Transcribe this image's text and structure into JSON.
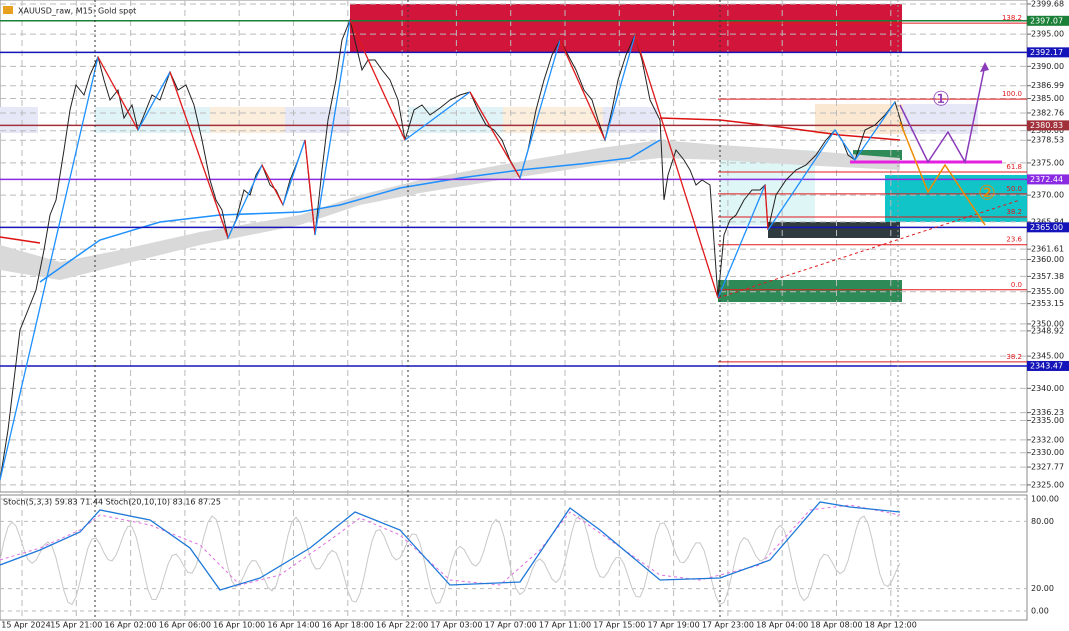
{
  "chart_data": {
    "type": "candlestick",
    "title": "XAUUSD_raw, M15: Gold spot",
    "categories": [
      "15 Apr 2024",
      "15 Apr 21:00",
      "16 Apr 02:00",
      "16 Apr 06:00",
      "16 Apr 10:00",
      "16 Apr 14:00",
      "16 Apr 18:00",
      "16 Apr 22:00",
      "17 Apr 03:00",
      "17 Apr 07:00",
      "17 Apr 11:00",
      "17 Apr 15:00",
      "17 Apr 19:00",
      "17 Apr 23:00",
      "18 Apr 04:00",
      "18 Apr 08:00",
      "18 Apr 12:00"
    ],
    "ylim": [
      2323.9,
      2400.3
    ],
    "yticks": [
      {
        "value": 2399.68,
        "label": "2399.68"
      },
      {
        "value": 2395,
        "label": "2395.00"
      },
      {
        "value": 2390,
        "label": "2390.00"
      },
      {
        "value": 2386.99,
        "label": "2386.99"
      },
      {
        "value": 2385,
        "label": "2385.00"
      },
      {
        "value": 2382.76,
        "label": "2382.76"
      },
      {
        "value": 2380,
        "label": "2380.00"
      },
      {
        "value": 2378.53,
        "label": "2378.53"
      },
      {
        "value": 2375,
        "label": "2375.00"
      },
      {
        "value": 2370,
        "label": "2370.00"
      },
      {
        "value": 2365.84,
        "label": "2365.84"
      },
      {
        "value": 2361.61,
        "label": "2361.61"
      },
      {
        "value": 2360,
        "label": "2360.00"
      },
      {
        "value": 2357.38,
        "label": "2357.38"
      },
      {
        "value": 2355,
        "label": "2355.00"
      },
      {
        "value": 2353.15,
        "label": "2353.15"
      },
      {
        "value": 2350,
        "label": "2350.00"
      },
      {
        "value": 2348.92,
        "label": "2348.92"
      },
      {
        "value": 2345,
        "label": "2345.00"
      },
      {
        "value": 2340,
        "label": "2340.00"
      },
      {
        "value": 2336.23,
        "label": "2336.23"
      },
      {
        "value": 2335,
        "label": "2335.00"
      },
      {
        "value": 2332,
        "label": "2332.00"
      },
      {
        "value": 2330,
        "label": "2330.00"
      },
      {
        "value": 2327.77,
        "label": "2327.77"
      },
      {
        "value": 2325,
        "label": "2325.00"
      }
    ],
    "price_levels": [
      {
        "value": 2397.07,
        "label": "2397.07",
        "color": "#1a7f37"
      },
      {
        "value": 2392.17,
        "label": "2392.17",
        "color": "#1414b8"
      },
      {
        "value": 2380.83,
        "label": "2380.83",
        "color": "#a0303a"
      },
      {
        "value": 2372.44,
        "label": "2372.44",
        "color": "#8a2be2"
      },
      {
        "value": 2365,
        "label": "2365.00",
        "color": "#1414b8"
      },
      {
        "value": 2343.47,
        "label": "2343.47",
        "color": "#1414b8"
      }
    ],
    "fib_levels": [
      {
        "level": "138.2",
        "price": 2396.7
      },
      {
        "level": "100.0",
        "price": 2384.9
      },
      {
        "level": "61.8",
        "price": 2373.6
      },
      {
        "level": "50.0",
        "price": 2370.2
      },
      {
        "level": "38.2",
        "price": 2366.6
      },
      {
        "level": "23.6",
        "price": 2362.3
      },
      {
        "level": "0.0",
        "price": 2355.3
      },
      {
        "level": "38.2",
        "price": 2344.1
      }
    ],
    "annotations": [
      "①",
      "②"
    ],
    "stochastic": {
      "title": "Stoch(5,3,3) 59.83 71.44 Stoch(20,10,10) 83.16 87.25",
      "ylim": [
        -8,
        103.6
      ],
      "yticks": [
        {
          "value": 100,
          "label": "100.00"
        },
        {
          "value": 80,
          "label": "80.00"
        },
        {
          "value": 20,
          "label": "20.00"
        },
        {
          "value": 0,
          "label": "0.00"
        }
      ]
    }
  }
}
